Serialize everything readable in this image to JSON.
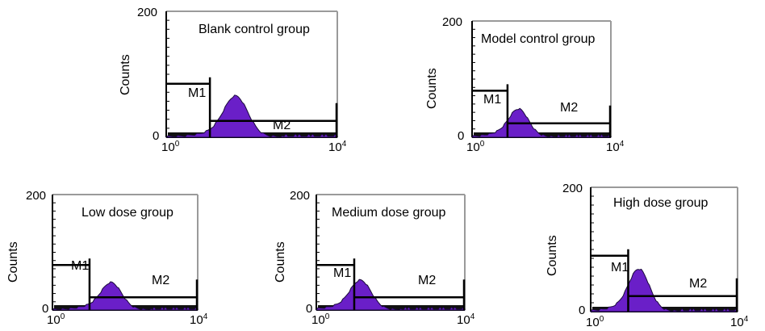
{
  "chart_data": [
    {
      "type": "histogram",
      "title": "Blank control group",
      "ylabel": "Counts",
      "yticks": [
        "0",
        "200"
      ],
      "xticks": [
        {
          "base": "10",
          "exp": "0"
        },
        {
          "base": "10",
          "exp": "4"
        }
      ],
      "x_scale": "log",
      "xlim": [
        1,
        10000
      ],
      "ylim": [
        0,
        200
      ],
      "peak_log_x": 1.63,
      "peak_count": 62,
      "markers": [
        {
          "name": "M1",
          "x_range": [
            1,
            10.5
          ],
          "level": 85
        },
        {
          "name": "M2",
          "x_range": [
            10.5,
            10000
          ],
          "level": 26
        }
      ]
    },
    {
      "type": "histogram",
      "title": "Model control group",
      "ylabel": "Counts",
      "yticks": [
        "0",
        "200"
      ],
      "xticks": [
        {
          "base": "10",
          "exp": "0"
        },
        {
          "base": "10",
          "exp": "4"
        }
      ],
      "x_scale": "log",
      "xlim": [
        1,
        10000
      ],
      "ylim": [
        0,
        200
      ],
      "peak_log_x": 1.35,
      "peak_count": 45,
      "markers": [
        {
          "name": "M1",
          "x_range": [
            1,
            10.5
          ],
          "level": 80
        },
        {
          "name": "M2",
          "x_range": [
            10.5,
            10000
          ],
          "level": 24
        }
      ]
    },
    {
      "type": "histogram",
      "title": "Low dose group",
      "ylabel": "Counts",
      "yticks": [
        "0",
        "200"
      ],
      "xticks": [
        {
          "base": "10",
          "exp": "0"
        },
        {
          "base": "10",
          "exp": "4"
        }
      ],
      "x_scale": "log",
      "xlim": [
        1,
        10000
      ],
      "ylim": [
        0,
        200
      ],
      "peak_log_x": 1.63,
      "peak_count": 44,
      "markers": [
        {
          "name": "M1",
          "x_range": [
            1,
            10.5
          ],
          "level": 78
        },
        {
          "name": "M2",
          "x_range": [
            10.5,
            10000
          ],
          "level": 22
        }
      ]
    },
    {
      "type": "histogram",
      "title": "Medium dose group",
      "ylabel": "Counts",
      "yticks": [
        "0",
        "200"
      ],
      "xticks": [
        {
          "base": "10",
          "exp": "0"
        },
        {
          "base": "10",
          "exp": "4"
        }
      ],
      "x_scale": "log",
      "xlim": [
        1,
        10000
      ],
      "ylim": [
        0,
        200
      ],
      "peak_log_x": 1.2,
      "peak_count": 48,
      "markers": [
        {
          "name": "M1",
          "x_range": [
            1,
            10.5
          ],
          "level": 78
        },
        {
          "name": "M2",
          "x_range": [
            10.5,
            10000
          ],
          "level": 22
        }
      ]
    },
    {
      "type": "histogram",
      "title": "High dose group",
      "ylabel": "Counts",
      "yticks": [
        "0",
        "200"
      ],
      "xticks": [
        {
          "base": "10",
          "exp": "0"
        },
        {
          "base": "10",
          "exp": "4"
        }
      ],
      "x_scale": "log",
      "xlim": [
        1,
        10000
      ],
      "ylim": [
        0,
        200
      ],
      "peak_log_x": 1.32,
      "peak_count": 65,
      "markers": [
        {
          "name": "M1",
          "x_range": [
            1,
            10.5
          ],
          "level": 90
        },
        {
          "name": "M2",
          "x_range": [
            10.5,
            10000
          ],
          "level": 25
        }
      ]
    }
  ],
  "colors": {
    "histogram_fill": "#6a1fc8",
    "baseline": "#111111",
    "frame": "#000000"
  }
}
